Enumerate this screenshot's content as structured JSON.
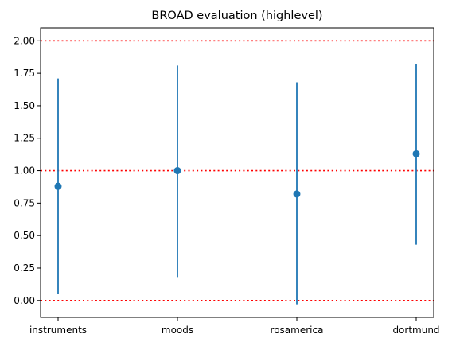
{
  "chart_data": {
    "type": "errorbar",
    "title": "BROAD evaluation (highlevel)",
    "xlabel": "",
    "ylabel": "",
    "categories": [
      "instruments",
      "moods",
      "rosamerica",
      "dortmund"
    ],
    "values": [
      0.88,
      1.0,
      0.82,
      1.13
    ],
    "lower": [
      0.05,
      0.18,
      -0.03,
      0.43
    ],
    "upper": [
      1.71,
      1.81,
      1.68,
      1.82
    ],
    "ylim": [
      -0.13,
      2.1
    ],
    "yticks": [
      0.0,
      0.25,
      0.5,
      0.75,
      1.0,
      1.25,
      1.5,
      1.75,
      2.0
    ],
    "ytick_labels": [
      "0.00",
      "0.25",
      "0.50",
      "0.75",
      "1.00",
      "1.25",
      "1.50",
      "1.75",
      "2.00"
    ],
    "reference_lines": [
      0.0,
      1.0,
      2.0
    ],
    "grid": false,
    "colors": {
      "series": "#1f77b4",
      "reference": "#ff0000",
      "axes": "#000000"
    }
  }
}
